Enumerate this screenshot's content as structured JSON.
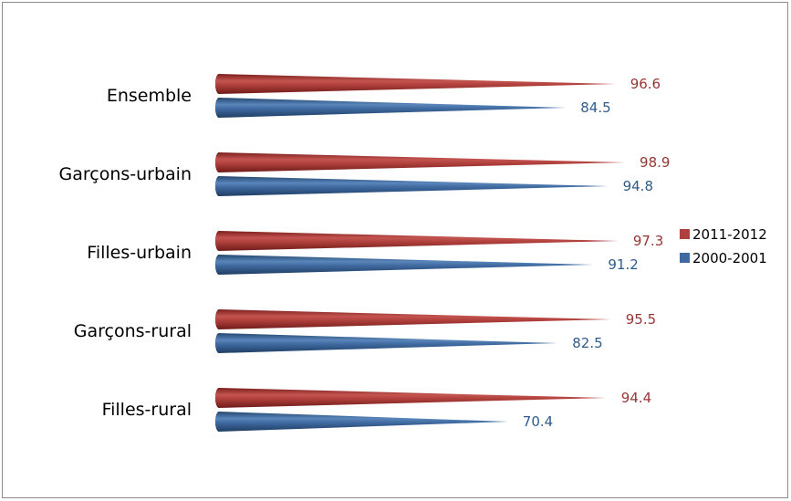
{
  "chart_data": {
    "type": "bar",
    "orientation": "horizontal",
    "bar_shape": "cone",
    "categories": [
      "Ensemble",
      "Garçons-urbain",
      "Filles-urbain",
      "Garçons-rural",
      "Filles-rural"
    ],
    "series": [
      {
        "name": "2011-2012",
        "color": "#b0403c",
        "label_color": "#963634",
        "values": [
          96.6,
          98.9,
          97.3,
          95.5,
          94.4
        ]
      },
      {
        "name": "2000-2001",
        "color": "#3f6aa0",
        "label_color": "#2f5b8c",
        "values": [
          84.5,
          94.8,
          91.2,
          82.5,
          70.4
        ]
      }
    ],
    "legend": {
      "position": "right",
      "entries": [
        "2011-2012",
        "2000-2001"
      ]
    },
    "title": "",
    "xlabel": "",
    "ylabel": "",
    "xlim": [
      0,
      100
    ],
    "grid": false,
    "data_labels": true
  }
}
